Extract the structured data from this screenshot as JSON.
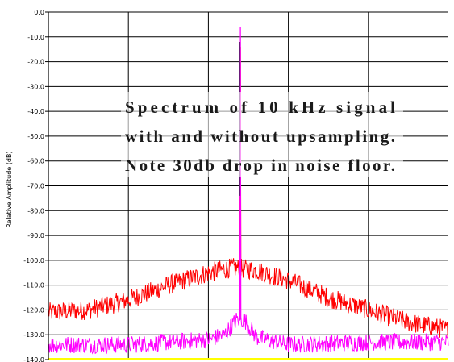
{
  "chart_data": {
    "type": "line",
    "title": "",
    "xlabel": "",
    "ylabel": "Relative Amplitude (dB)",
    "ylim": [
      -140,
      0
    ],
    "yticks": [
      "0.0",
      "-10.0",
      "-20.0",
      "-30.0",
      "-40.0",
      "-50.0",
      "-60.0",
      "-70.0",
      "-80.0",
      "-90.0",
      "-100.0",
      "-110.0",
      "-120.0",
      "-130.0",
      "-140.0"
    ],
    "x_range": [
      0,
      5
    ],
    "x_gridlines": [
      1,
      2,
      3,
      4
    ],
    "grid": true,
    "annotation": [
      "Spectrum of 10 kHz signal",
      "with and without upsampling.",
      "Note 30db drop in noise floor."
    ],
    "series": [
      {
        "color": "#ff0000",
        "peak_x": 2.4,
        "peak_value": -14,
        "noise_floor_points": [
          [
            0.0,
            -121
          ],
          [
            0.5,
            -120
          ],
          [
            1.0,
            -116
          ],
          [
            1.5,
            -110
          ],
          [
            2.0,
            -105
          ],
          [
            2.3,
            -103
          ],
          [
            2.6,
            -104
          ],
          [
            3.0,
            -108
          ],
          [
            3.5,
            -115
          ],
          [
            4.0,
            -120
          ],
          [
            4.5,
            -125
          ],
          [
            5.0,
            -128
          ]
        ]
      },
      {
        "color": "#ff00ff",
        "peak_x": 2.4,
        "peak_value": -6,
        "noise_floor_points": [
          [
            0.0,
            -134
          ],
          [
            1.0,
            -134
          ],
          [
            2.0,
            -132
          ],
          [
            2.2,
            -130
          ],
          [
            2.35,
            -124
          ],
          [
            2.45,
            -124
          ],
          [
            2.6,
            -131
          ],
          [
            3.0,
            -134
          ],
          [
            4.0,
            -133
          ],
          [
            5.0,
            -133
          ]
        ]
      }
    ],
    "baseline_color": "#ffff00",
    "trace_color_dark": "#6a1a7a"
  }
}
